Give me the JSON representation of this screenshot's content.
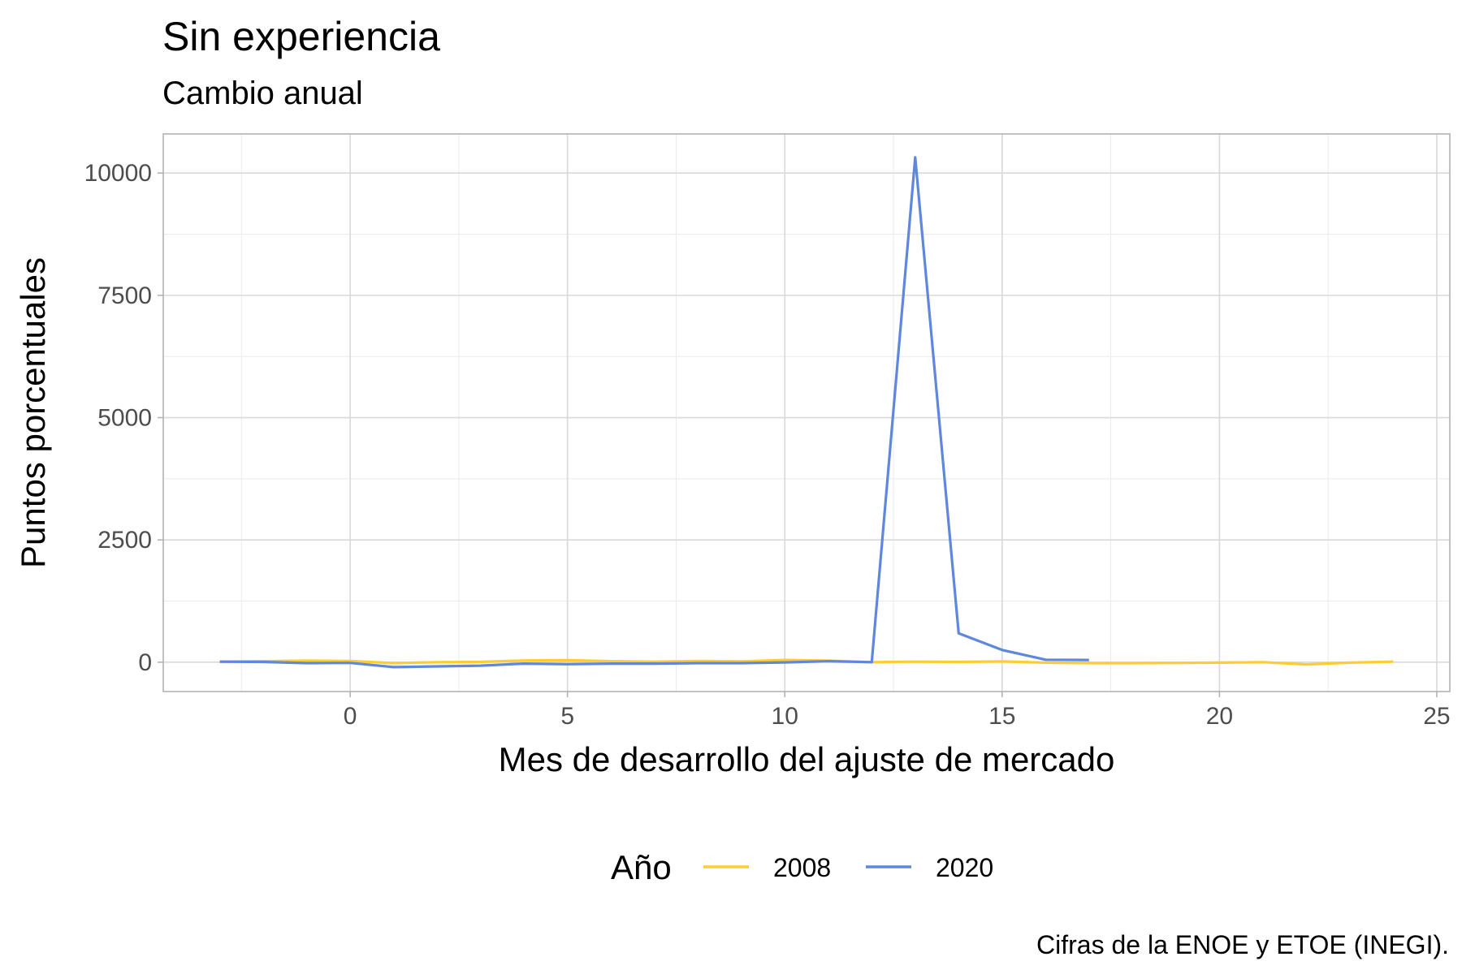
{
  "chart_data": {
    "type": "line",
    "title": "Sin experiencia",
    "subtitle": "Cambio anual",
    "xlabel": "Mes de desarrollo del ajuste de mercado",
    "ylabel": "Puntos porcentuales",
    "caption": "Cifras de la ENOE y ETOE (INEGI).",
    "xlim": [
      -4.3,
      25.3
    ],
    "ylim": [
      -600,
      10800
    ],
    "x_ticks": [
      0,
      5,
      10,
      15,
      20,
      25
    ],
    "x_tick_labels": [
      "0",
      "5",
      "10",
      "15",
      "20",
      "25"
    ],
    "y_ticks": [
      0,
      2500,
      5000,
      7500,
      10000
    ],
    "y_tick_labels": [
      "0",
      "2500",
      "5000",
      "7500",
      "10000"
    ],
    "grid": true,
    "legend": {
      "title": "Año",
      "position": "bottom"
    },
    "series": [
      {
        "name": "2008",
        "color": "#FFCC33",
        "x": [
          -3,
          -2,
          -1,
          0,
          1,
          2,
          3,
          4,
          5,
          6,
          7,
          8,
          9,
          10,
          11,
          12,
          13,
          14,
          15,
          16,
          17,
          18,
          19,
          20,
          21,
          22,
          23,
          24
        ],
        "y": [
          10,
          20,
          30,
          25,
          -20,
          0,
          5,
          35,
          40,
          20,
          10,
          25,
          15,
          45,
          30,
          0,
          10,
          5,
          15,
          -10,
          -20,
          -20,
          -15,
          -10,
          0,
          -45,
          -10,
          10
        ]
      },
      {
        "name": "2020",
        "color": "#5F87DC",
        "x": [
          -3,
          -2,
          -1,
          0,
          1,
          2,
          3,
          4,
          5,
          6,
          7,
          8,
          9,
          10,
          11,
          12,
          13,
          14,
          15,
          16,
          17
        ],
        "y": [
          10,
          5,
          -20,
          -15,
          -100,
          -85,
          -70,
          -30,
          -40,
          -30,
          -30,
          -20,
          -20,
          -5,
          20,
          0,
          10320,
          590,
          250,
          50,
          45
        ]
      }
    ]
  }
}
